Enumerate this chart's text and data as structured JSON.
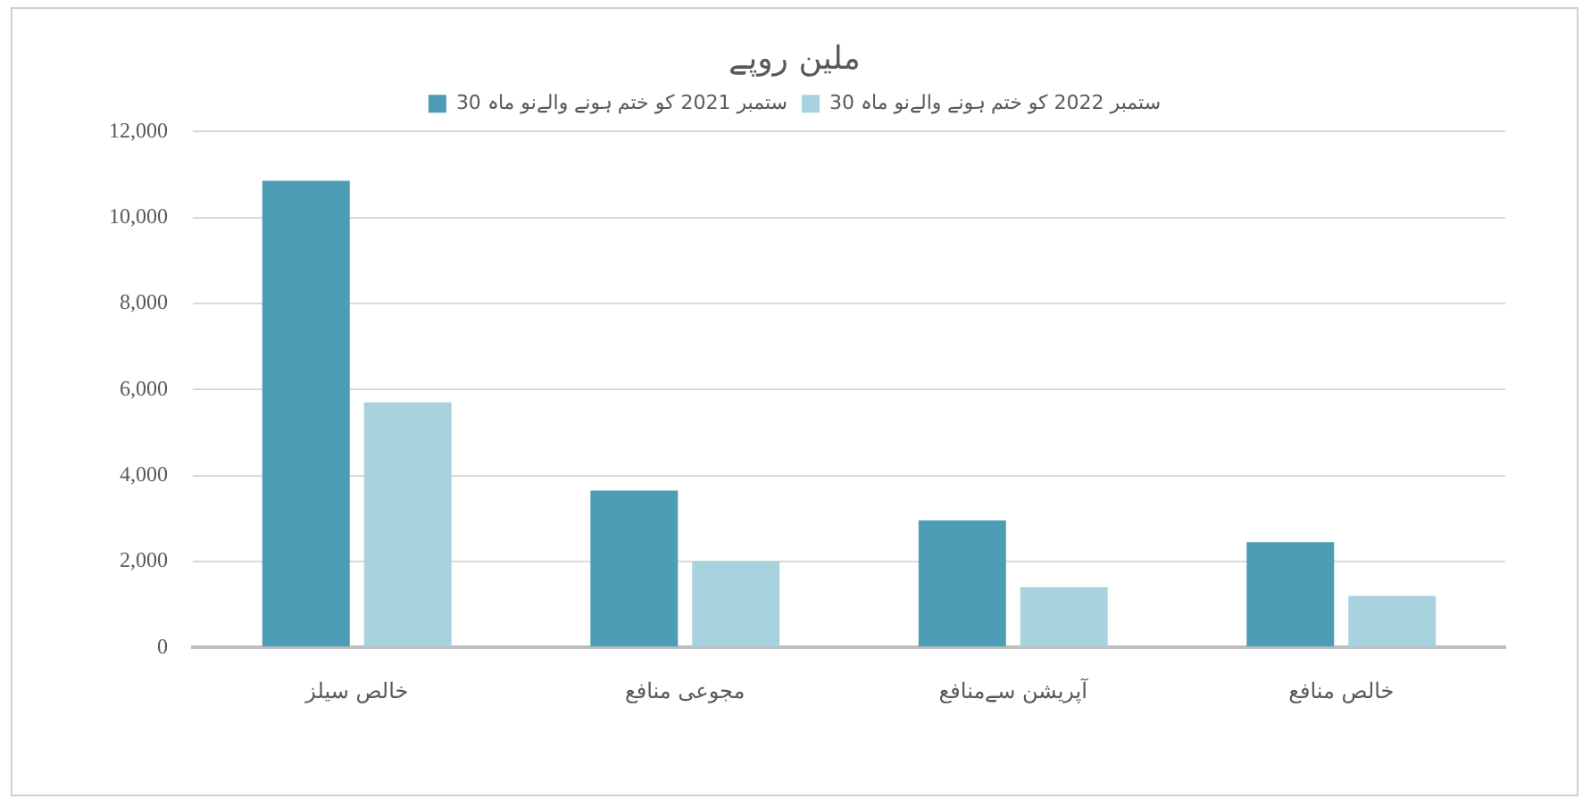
{
  "chart_data": {
    "type": "bar",
    "title": "ملین روپے",
    "categories": [
      "خالص سیلز",
      "مجوعی منافع",
      "آپریشن سےمنافع",
      "خالص منافع"
    ],
    "series": [
      {
        "name": "30 ستمبر 2021 کو ختم ہونے والےنو ماہ",
        "color": "#4e9db6",
        "values": [
          10850,
          3650,
          2950,
          2450
        ]
      },
      {
        "name": "30 ستمبر 2022 کو ختم ہونے والےنو ماہ",
        "color": "#a9d2df",
        "values": [
          5700,
          2000,
          1400,
          1200
        ]
      }
    ],
    "ylim": [
      0,
      12000
    ],
    "yticks": [
      0,
      {
        "value": 2000,
        "label": "2,000"
      },
      {
        "value": 4000,
        "label": "4,000"
      },
      {
        "value": 6000,
        "label": "6,000"
      },
      {
        "value": 8000,
        "label": "8,000"
      },
      {
        "value": 10000,
        "label": "10,000"
      },
      {
        "value": 12000,
        "label": "12,000"
      }
    ],
    "grid": "y",
    "legend": "top"
  }
}
